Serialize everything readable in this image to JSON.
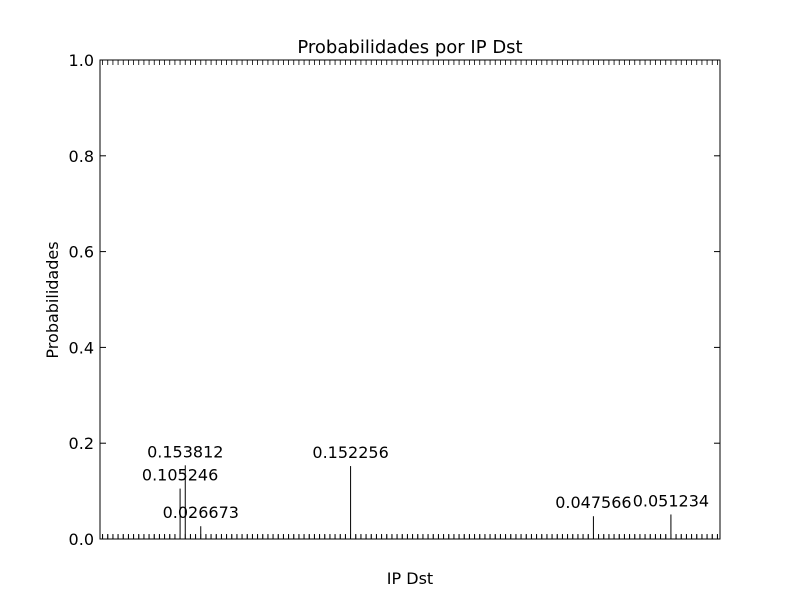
{
  "chart_data": {
    "type": "bar",
    "title": "Probabilidades por IP Dst",
    "xlabel": "IP Dst",
    "ylabel": "Probabilidades",
    "ylim": [
      0,
      1.0
    ],
    "yticks": [
      "0.0",
      "0.2",
      "0.4",
      "0.6",
      "0.8",
      "1.0"
    ],
    "grid": false,
    "bar_count": 120,
    "labeled_values": [
      {
        "index": 15,
        "value": 0.105246
      },
      {
        "index": 16,
        "value": 0.153812
      },
      {
        "index": 19,
        "value": 0.026673
      },
      {
        "index": 48,
        "value": 0.152256
      },
      {
        "index": 95,
        "value": 0.047566
      },
      {
        "index": 110,
        "value": 0.051234
      }
    ],
    "small_value": 0.01
  }
}
